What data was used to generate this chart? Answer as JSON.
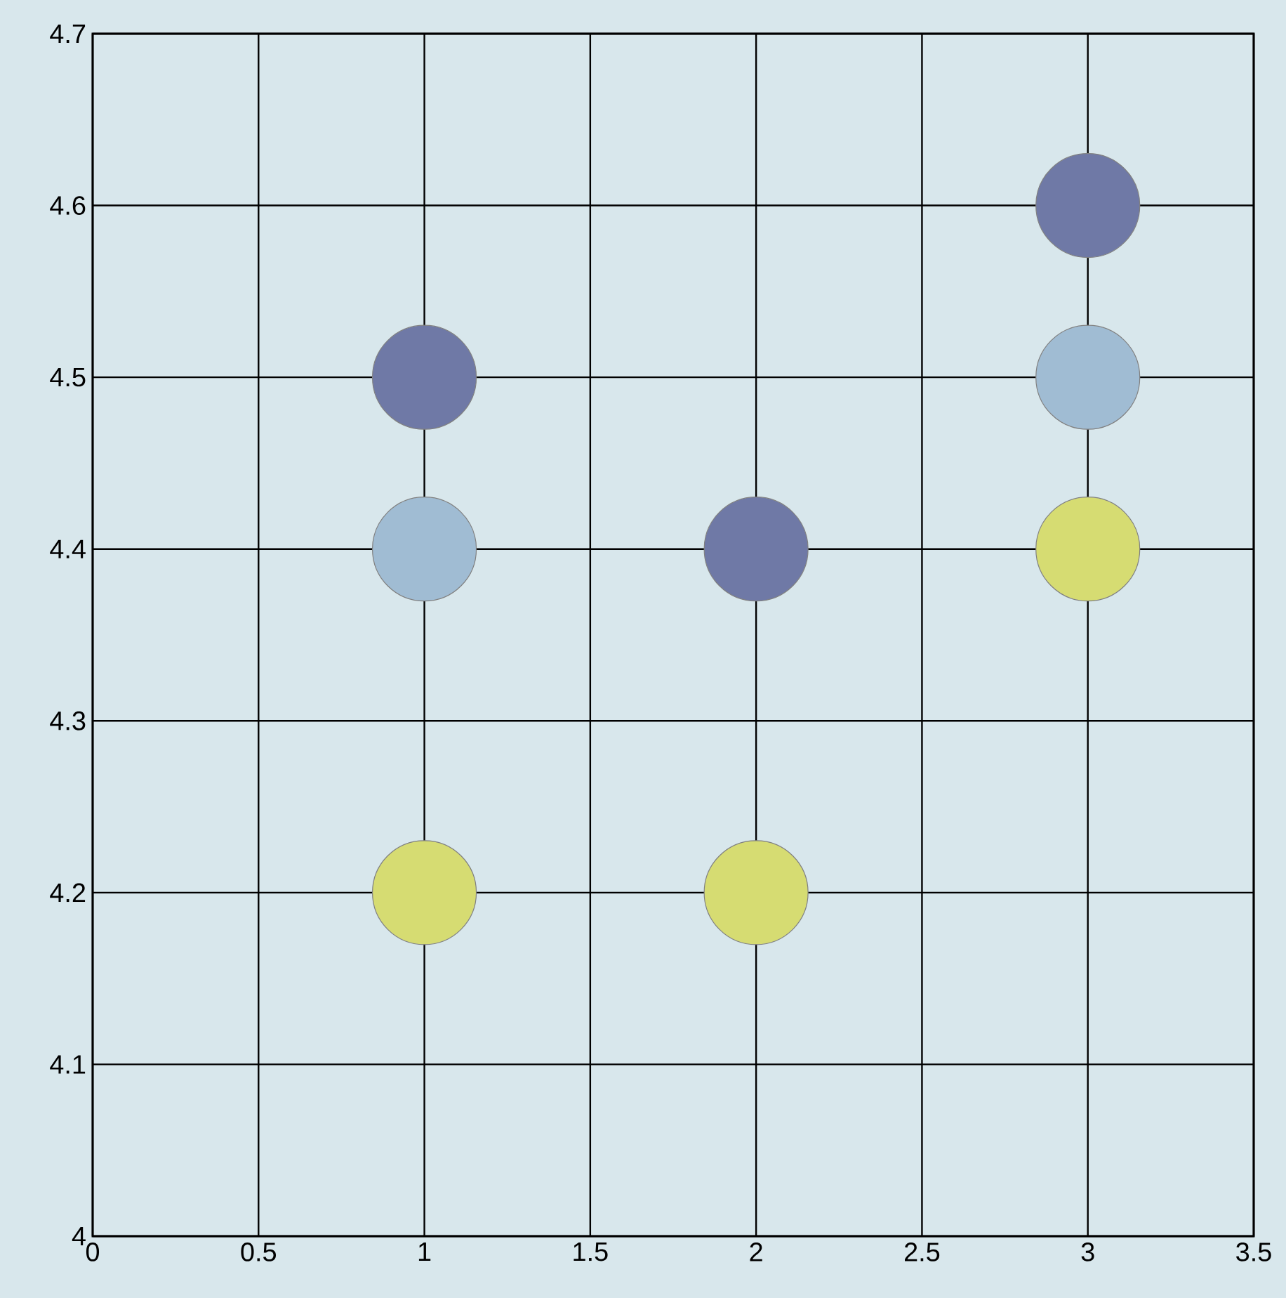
{
  "chart_data": {
    "type": "scatter",
    "series": [
      {
        "color": "#6f79a6",
        "x": [
          1,
          2,
          3
        ],
        "values": [
          4.5,
          4.4,
          4.6
        ]
      },
      {
        "color": "#a0bcd3",
        "x": [
          1,
          3
        ],
        "values": [
          4.4,
          4.5
        ]
      },
      {
        "color": "#d6dc72",
        "x": [
          1,
          2,
          3
        ],
        "values": [
          4.2,
          4.2,
          4.4
        ]
      }
    ],
    "xlim": [
      0,
      3.5
    ],
    "xticks": [
      0,
      0.5,
      1,
      1.5,
      2,
      2.5,
      3,
      3.5
    ],
    "ylim": [
      4,
      4.7
    ],
    "yticks": [
      4,
      4.1,
      4.2,
      4.3,
      4.4,
      4.5,
      4.6,
      4.7
    ],
    "grid": true,
    "marker": "circle"
  }
}
